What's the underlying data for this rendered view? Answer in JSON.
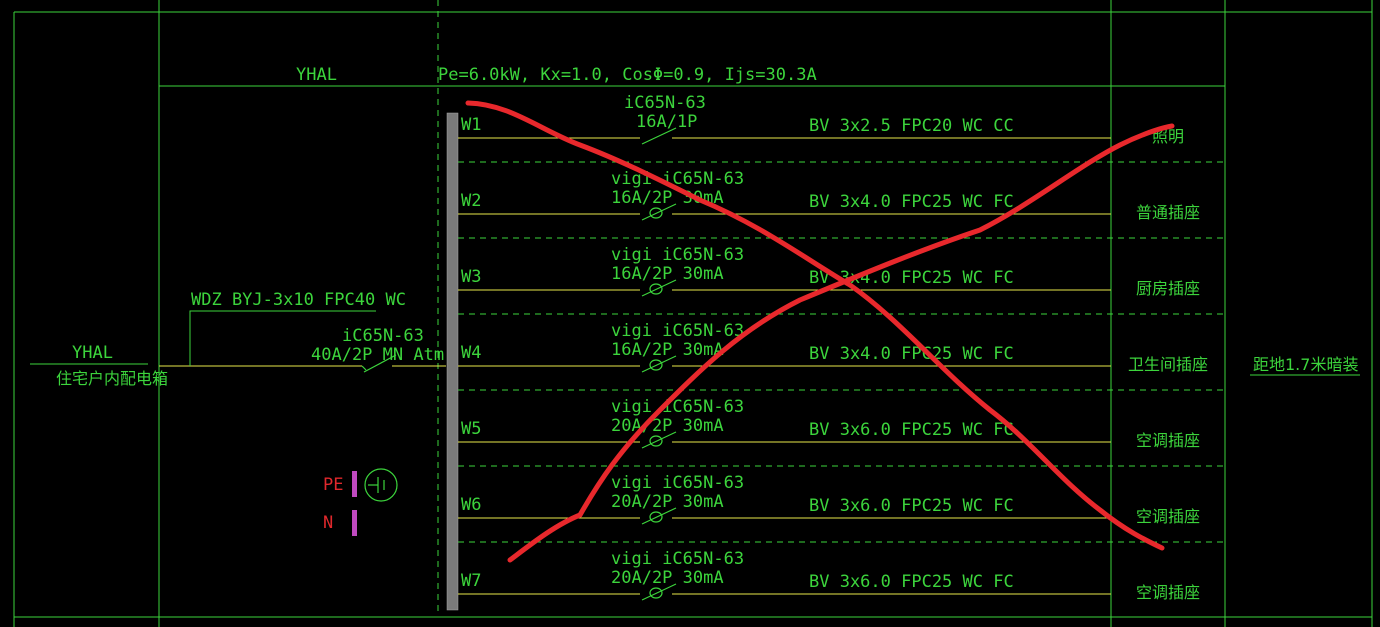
{
  "panel": {
    "name_top": "YHAL",
    "params": "Pe=6.0kW, Kx=1.0, CosΦ=0.9, Ijs=30.3A",
    "name_left": "YHAL",
    "desc_left": "住宅户内配电箱",
    "install": "距地1.7米暗装"
  },
  "incoming": {
    "cable": "WDZ BYJ-3x10 FPC40 WC",
    "breaker_model": "iC65N-63",
    "breaker_rating": "40A/2P  MN Atm"
  },
  "terminals": {
    "pe": "PE",
    "n": "N"
  },
  "circuits": [
    {
      "id": "W1",
      "model": "iC65N-63",
      "rating": "16A/1P",
      "cable": "BV 3x2.5 FPC20 WC CC",
      "load": "照明"
    },
    {
      "id": "W2",
      "model": "vigi iC65N-63",
      "rating": "16A/2P 30mA",
      "cable": "BV 3x4.0 FPC25 WC FC",
      "load": "普通插座"
    },
    {
      "id": "W3",
      "model": "vigi iC65N-63",
      "rating": "16A/2P 30mA",
      "cable": "BV 3x4.0 FPC25 WC FC",
      "load": "厨房插座"
    },
    {
      "id": "W4",
      "model": "vigi iC65N-63",
      "rating": "16A/2P 30mA",
      "cable": "BV 3x4.0 FPC25 WC FC",
      "load": "卫生间插座"
    },
    {
      "id": "W5",
      "model": "vigi iC65N-63",
      "rating": "20A/2P 30mA",
      "cable": "BV 3x6.0 FPC25 WC FC",
      "load": "空调插座"
    },
    {
      "id": "W6",
      "model": "vigi iC65N-63",
      "rating": "20A/2P 30mA",
      "cable": "BV 3x6.0 FPC25 WC FC",
      "load": "空调插座"
    },
    {
      "id": "W7",
      "model": "vigi iC65N-63",
      "rating": "20A/2P 30mA",
      "cable": "BV 3x6.0 FPC25 WC FC",
      "load": "空调插座"
    }
  ],
  "colors": {
    "line": "#3cd43c",
    "wire": "#e8e84a",
    "markup": "#e8282c",
    "busbar": "#7a7a7a",
    "terminal": "#c04ac0",
    "background": "#000000"
  }
}
